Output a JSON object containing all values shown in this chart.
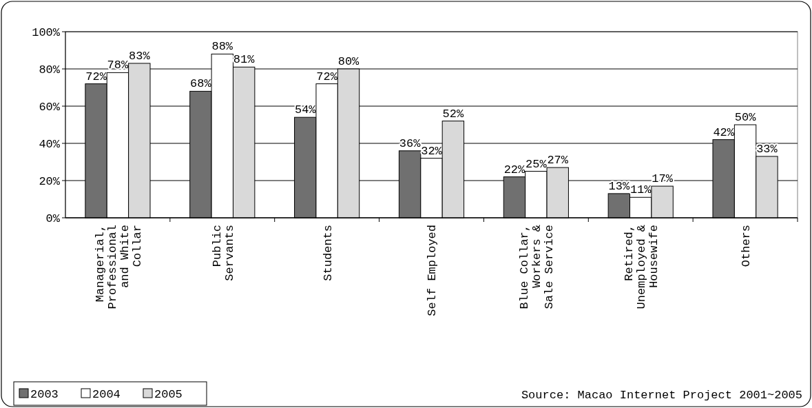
{
  "chart_data": {
    "type": "bar",
    "categories": [
      "Managerial, Professional and White Collar",
      "Public Servants",
      "Students",
      "Self Employed",
      "Blue Collar, Workers & Sale Service",
      "Retired, Unemployed & Housewife",
      "Others"
    ],
    "series": [
      {
        "name": "2003",
        "color": "#707070",
        "values": [
          72,
          68,
          54,
          36,
          22,
          13,
          42
        ],
        "value_labels": [
          "72%",
          "68%",
          "54%",
          "36%",
          "22%",
          "13%",
          "42%"
        ]
      },
      {
        "name": "2004",
        "color": "#ffffff",
        "values": [
          78,
          88,
          72,
          32,
          25,
          11,
          50
        ],
        "value_labels": [
          "78%",
          "88%",
          "72%",
          "32%",
          "25%",
          "11%",
          "50%"
        ]
      },
      {
        "name": "2005",
        "color": "#d9d9d9",
        "values": [
          83,
          81,
          80,
          52,
          27,
          17,
          33
        ],
        "value_labels": [
          "83%",
          "81%",
          "80%",
          "52%",
          "27%",
          "17%",
          "33%"
        ]
      }
    ],
    "ylim": [
      0,
      100
    ],
    "yticks": [
      {
        "value": 0,
        "label": "0%"
      },
      {
        "value": 20,
        "label": "20%"
      },
      {
        "value": 40,
        "label": "40%"
      },
      {
        "value": 60,
        "label": "60%"
      },
      {
        "value": 80,
        "label": "80%"
      },
      {
        "value": 100,
        "label": "100%"
      }
    ],
    "grid": "y",
    "legend": "bottom left",
    "annotations": [
      "Source: Macao Internet Project 2001~2005"
    ]
  }
}
